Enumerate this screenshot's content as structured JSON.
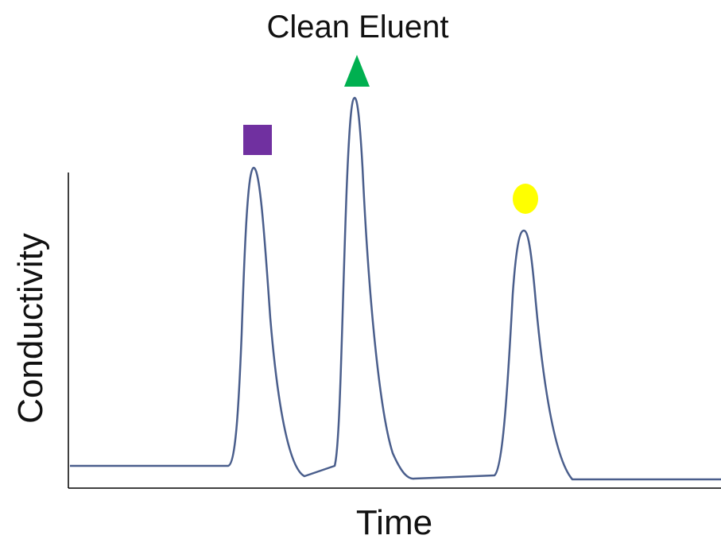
{
  "chart_data": {
    "type": "line",
    "title": "Clean Eluent",
    "xlabel": "Time",
    "ylabel": "Conductivity",
    "grid": false,
    "legend": "none",
    "axis_ticks": false,
    "line_color": "#4a5e8c",
    "axis_color": "#000000",
    "peaks": [
      {
        "marker": "square",
        "color": "#7030a0"
      },
      {
        "marker": "triangle",
        "color": "#00b050"
      },
      {
        "marker": "circle",
        "color": "#ffff00"
      }
    ]
  }
}
